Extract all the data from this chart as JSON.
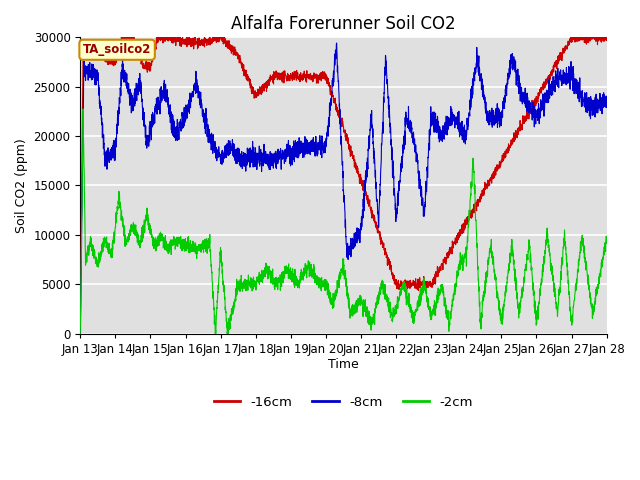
{
  "title": "Alfalfa Forerunner Soil CO2",
  "xlabel": "Time",
  "ylabel": "Soil CO2 (ppm)",
  "ylim": [
    0,
    30000
  ],
  "yticks": [
    0,
    5000,
    10000,
    15000,
    20000,
    25000,
    30000
  ],
  "x_labels": [
    "Jan 13",
    "Jan 14",
    "Jan 15",
    "Jan 16",
    "Jan 17",
    "Jan 18",
    "Jan 19",
    "Jan 20",
    "Jan 21",
    "Jan 22",
    "Jan 23",
    "Jan 24",
    "Jan 25",
    "Jan 26",
    "Jan 27",
    "Jan 28"
  ],
  "legend_labels": [
    "-16cm",
    "-8cm",
    "-2cm"
  ],
  "line_colors": [
    "#cc0000",
    "#0000cc",
    "#00cc00"
  ],
  "annotation_text": "TA_soilco2",
  "annotation_box_color": "#ffffcc",
  "annotation_box_edge": "#cc8800",
  "background_color": "#e0e0e0",
  "title_fontsize": 12,
  "label_fontsize": 9,
  "tick_fontsize": 8.5
}
